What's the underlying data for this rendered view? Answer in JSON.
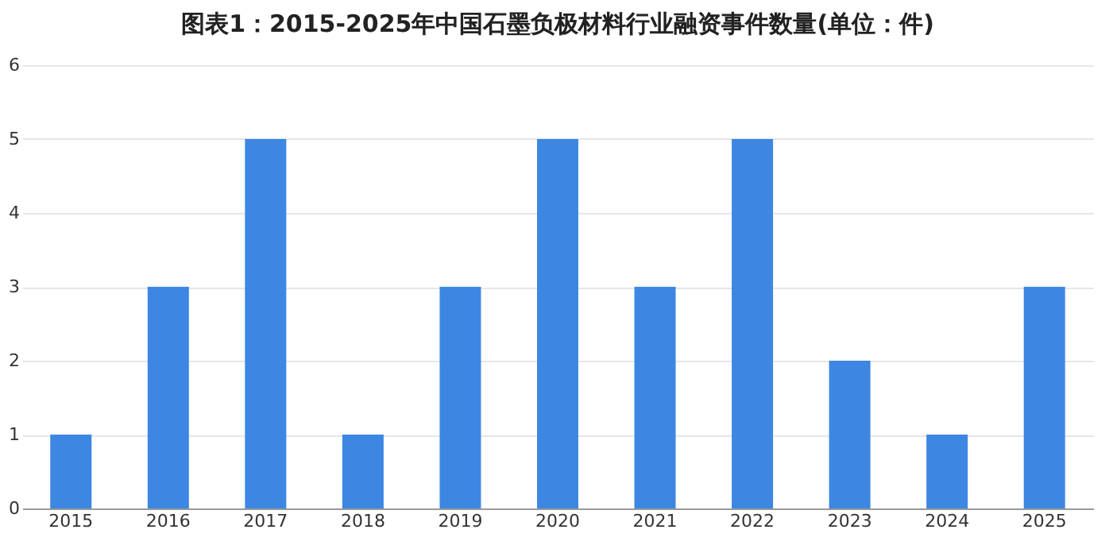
{
  "chart_data": {
    "type": "bar",
    "title": "图表1：2015-2025年中国石墨负极材料行业融资事件数量(单位：件)",
    "categories": [
      "2015",
      "2016",
      "2017",
      "2018",
      "2019",
      "2020",
      "2021",
      "2022",
      "2023",
      "2024",
      "2025"
    ],
    "values": [
      1,
      3,
      5,
      1,
      3,
      5,
      3,
      5,
      2,
      1,
      3
    ],
    "color": "#3d87e3",
    "ylim": [
      0,
      6
    ],
    "yticks": [
      0,
      1,
      2,
      3,
      4,
      5,
      6
    ],
    "grid": "y"
  }
}
